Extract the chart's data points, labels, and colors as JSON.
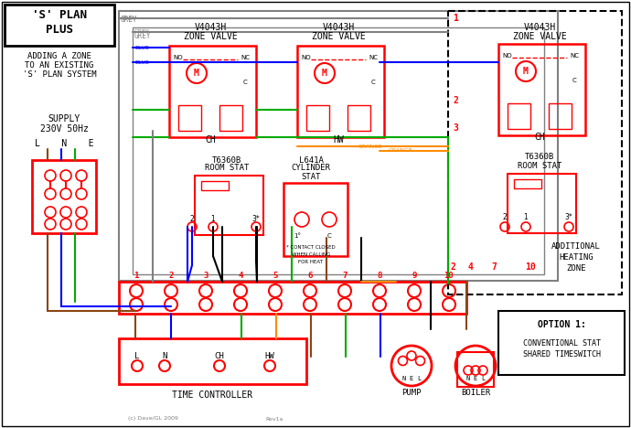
{
  "bg_color": "#ffffff",
  "line_color_grey": "#808080",
  "line_color_blue": "#0000ff",
  "line_color_green": "#00aa00",
  "line_color_orange": "#ff8c00",
  "line_color_brown": "#8b4513",
  "line_color_black": "#000000",
  "line_color_red": "#ff0000",
  "title1": "'S' PLAN",
  "title2": "PLUS",
  "subtitle": "ADDING A ZONE\nTO AN EXISTING\n'S' PLAN SYSTEM",
  "supply_text": "SUPPLY\n230V 50Hz",
  "lne_text": "L    N    E",
  "option_text": "OPTION 1:\n\nCONVENTIONAL STAT\nSHARED TIMESWITCH",
  "add_zone_text": "ADDITIONAL\nHEATING\nZONE"
}
